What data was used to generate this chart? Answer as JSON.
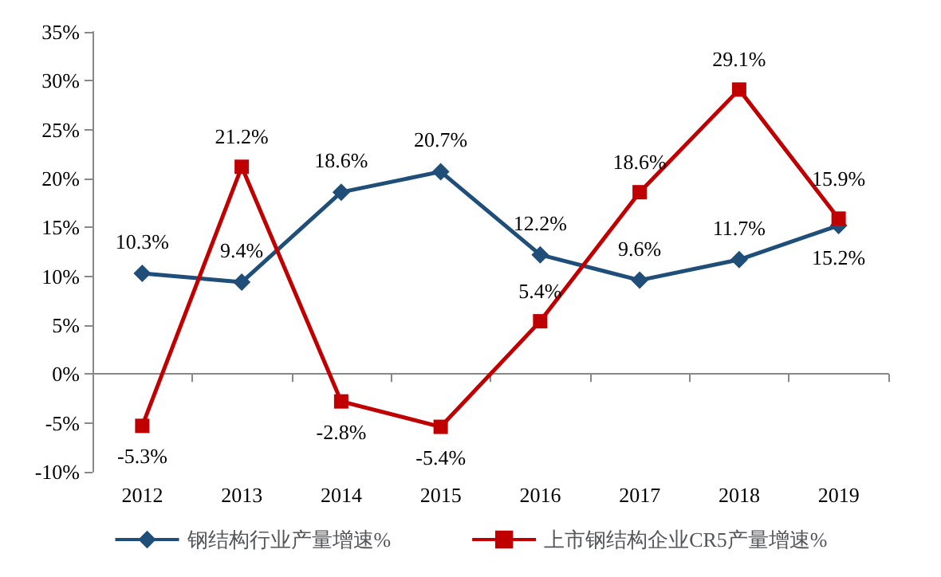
{
  "chart_data": {
    "type": "line",
    "categories": [
      "2012",
      "2013",
      "2014",
      "2015",
      "2016",
      "2017",
      "2018",
      "2019"
    ],
    "series": [
      {
        "name": "钢结构行业产量增速%",
        "color": "#1f4e79",
        "marker": "diamond",
        "values": [
          10.3,
          9.4,
          18.6,
          20.7,
          12.2,
          9.6,
          11.7,
          15.2
        ],
        "value_labels": [
          "10.3%",
          "9.4%",
          "18.6%",
          "20.7%",
          "12.2%",
          "9.6%",
          "11.7%",
          "15.2%"
        ]
      },
      {
        "name": "上市钢结构企业CR5产量增速%",
        "color": "#c00000",
        "marker": "square",
        "values": [
          -5.3,
          21.2,
          -2.8,
          -5.4,
          5.4,
          18.6,
          29.1,
          15.9
        ],
        "value_labels": [
          "-5.3%",
          "21.2%",
          "-2.8%",
          "-5.4%",
          "5.4%",
          "18.6%",
          "29.1%",
          "15.9%"
        ]
      }
    ],
    "ylim": [
      -10,
      35
    ],
    "yticks": [
      {
        "value": -10,
        "label": "-10%"
      },
      {
        "value": -5,
        "label": "-5%"
      },
      {
        "value": 0,
        "label": "0%"
      },
      {
        "value": 5,
        "label": "5%"
      },
      {
        "value": 10,
        "label": "10%"
      },
      {
        "value": 15,
        "label": "15%"
      },
      {
        "value": 20,
        "label": "20%"
      },
      {
        "value": 25,
        "label": "25%"
      },
      {
        "value": 30,
        "label": "30%"
      },
      {
        "value": 35,
        "label": "35%"
      }
    ],
    "legend": "bottom",
    "line_style": "solid"
  }
}
